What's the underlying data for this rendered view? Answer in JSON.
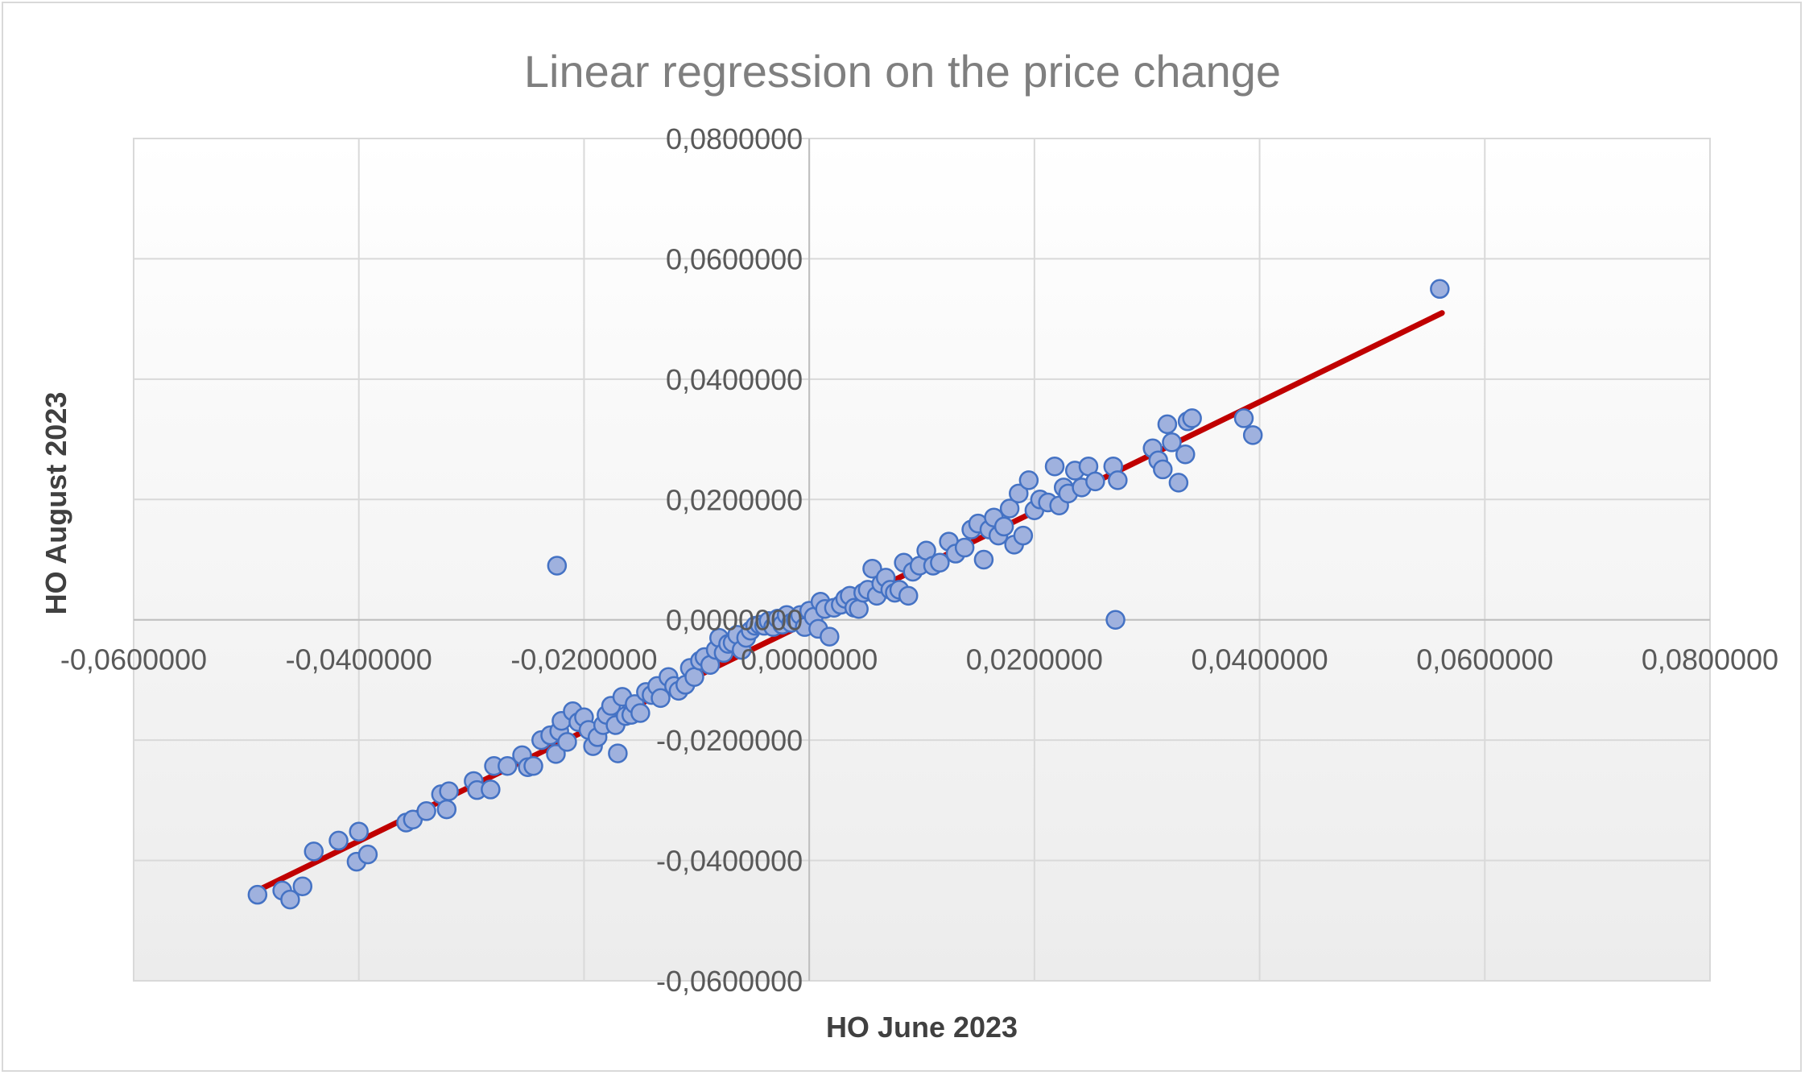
{
  "chart_data": {
    "type": "scatter",
    "title": "Linear regression on the price change",
    "xlabel": "HO June 2023",
    "ylabel": "HO August 2023",
    "xlim": [
      -0.06,
      0.08
    ],
    "ylim": [
      -0.06,
      0.08
    ],
    "x_ticks": [
      {
        "value": -0.06,
        "label": "-0,0600000"
      },
      {
        "value": -0.04,
        "label": "-0,0400000"
      },
      {
        "value": -0.02,
        "label": "-0,0200000"
      },
      {
        "value": 0.0,
        "label": "0,0000000"
      },
      {
        "value": 0.02,
        "label": "0,0200000"
      },
      {
        "value": 0.04,
        "label": "0,0400000"
      },
      {
        "value": 0.06,
        "label": "0,0600000"
      },
      {
        "value": 0.08,
        "label": "0,0800000"
      }
    ],
    "y_ticks": [
      {
        "value": 0.08,
        "label": "0,0800000"
      },
      {
        "value": 0.06,
        "label": "0,0600000"
      },
      {
        "value": 0.04,
        "label": "0,0400000"
      },
      {
        "value": 0.02,
        "label": "0,0200000"
      },
      {
        "value": 0.0,
        "label": "0,0000000"
      },
      {
        "value": -0.02,
        "label": "-0,0200000"
      },
      {
        "value": -0.04,
        "label": "-0,0400000"
      },
      {
        "value": -0.06,
        "label": "-0,0600000"
      }
    ],
    "grid": true,
    "series": [
      {
        "name": "HO August 2023",
        "points": [
          [
            -0.049,
            -0.0457
          ],
          [
            -0.0468,
            -0.045
          ],
          [
            -0.0461,
            -0.0465
          ],
          [
            -0.045,
            -0.0443
          ],
          [
            -0.044,
            -0.0385
          ],
          [
            -0.0418,
            -0.0367
          ],
          [
            -0.0402,
            -0.0402
          ],
          [
            -0.04,
            -0.0352
          ],
          [
            -0.0392,
            -0.039
          ],
          [
            -0.0358,
            -0.0337
          ],
          [
            -0.0352,
            -0.0332
          ],
          [
            -0.034,
            -0.0318
          ],
          [
            -0.0327,
            -0.029
          ],
          [
            -0.0322,
            -0.0315
          ],
          [
            -0.032,
            -0.0285
          ],
          [
            -0.0298,
            -0.0268
          ],
          [
            -0.0295,
            -0.0283
          ],
          [
            -0.0283,
            -0.0282
          ],
          [
            -0.028,
            -0.0243
          ],
          [
            -0.0268,
            -0.0243
          ],
          [
            -0.0255,
            -0.0225
          ],
          [
            -0.025,
            -0.0245
          ],
          [
            -0.0245,
            -0.0243
          ],
          [
            -0.0238,
            -0.02
          ],
          [
            -0.023,
            -0.0192
          ],
          [
            -0.0225,
            -0.0223
          ],
          [
            -0.0222,
            -0.0185
          ],
          [
            -0.022,
            -0.0168
          ],
          [
            -0.0215,
            -0.0203
          ],
          [
            -0.021,
            -0.0152
          ],
          [
            -0.0205,
            -0.017
          ],
          [
            -0.02,
            -0.0162
          ],
          [
            -0.0196,
            -0.0183
          ],
          [
            -0.0192,
            -0.021
          ],
          [
            -0.0188,
            -0.0195
          ],
          [
            -0.0183,
            -0.0175
          ],
          [
            -0.018,
            -0.0158
          ],
          [
            -0.0176,
            -0.0143
          ],
          [
            -0.0172,
            -0.0175
          ],
          [
            -0.017,
            -0.0222
          ],
          [
            -0.0166,
            -0.0128
          ],
          [
            -0.0163,
            -0.016
          ],
          [
            -0.0158,
            -0.0158
          ],
          [
            -0.0155,
            -0.014
          ],
          [
            -0.015,
            -0.0155
          ],
          [
            -0.0145,
            -0.012
          ],
          [
            -0.014,
            -0.0125
          ],
          [
            -0.0135,
            -0.011
          ],
          [
            -0.0132,
            -0.013
          ],
          [
            -0.0125,
            -0.0095
          ],
          [
            -0.012,
            -0.011
          ],
          [
            -0.0116,
            -0.0118
          ],
          [
            -0.011,
            -0.0108
          ],
          [
            -0.0106,
            -0.008
          ],
          [
            -0.0102,
            -0.0095
          ],
          [
            -0.0097,
            -0.0068
          ],
          [
            -0.0093,
            -0.0062
          ],
          [
            -0.0088,
            -0.0075
          ],
          [
            -0.0083,
            -0.005
          ],
          [
            -0.008,
            -0.003
          ],
          [
            -0.0076,
            -0.0055
          ],
          [
            -0.0072,
            -0.004
          ],
          [
            -0.0068,
            -0.0038
          ],
          [
            -0.0064,
            -0.0025
          ],
          [
            -0.006,
            -0.005
          ],
          [
            -0.0056,
            -0.003
          ],
          [
            -0.0052,
            -0.0018
          ],
          [
            -0.0048,
            -0.001
          ],
          [
            -0.0044,
            -0.0008
          ],
          [
            -0.004,
            -0.001
          ],
          [
            -0.0036,
            -0.0002
          ],
          [
            -0.0032,
            -0.0012
          ],
          [
            -0.0028,
            0.0002
          ],
          [
            -0.0024,
            -0.0008
          ],
          [
            -0.002,
            0.0008
          ],
          [
            -0.0016,
            -0.0005
          ],
          [
            -0.0012,
            0.0
          ],
          [
            -0.0008,
            0.0008
          ],
          [
            -0.0004,
            -0.0012
          ],
          [
            0.0,
            0.0015
          ],
          [
            0.0004,
            0.0005
          ],
          [
            0.0008,
            -0.0015
          ],
          [
            0.001,
            0.003
          ],
          [
            0.0014,
            0.0018
          ],
          [
            0.0018,
            -0.0028
          ],
          [
            0.0022,
            0.002
          ],
          [
            0.0028,
            0.0025
          ],
          [
            0.0032,
            0.0035
          ],
          [
            0.0036,
            0.004
          ],
          [
            0.004,
            0.002
          ],
          [
            0.0044,
            0.0018
          ],
          [
            0.0048,
            0.0045
          ],
          [
            0.0052,
            0.005
          ],
          [
            0.0056,
            0.0085
          ],
          [
            0.006,
            0.004
          ],
          [
            0.0064,
            0.006
          ],
          [
            0.0068,
            0.007
          ],
          [
            0.0072,
            0.005
          ],
          [
            0.0076,
            0.0045
          ],
          [
            0.008,
            0.005
          ],
          [
            0.0084,
            0.0095
          ],
          [
            0.0088,
            0.004
          ],
          [
            0.0092,
            0.008
          ],
          [
            0.0098,
            0.009
          ],
          [
            0.0104,
            0.0115
          ],
          [
            0.011,
            0.009
          ],
          [
            0.0116,
            0.0095
          ],
          [
            0.0124,
            0.013
          ],
          [
            0.013,
            0.011
          ],
          [
            0.0138,
            0.012
          ],
          [
            0.0144,
            0.015
          ],
          [
            0.015,
            0.016
          ],
          [
            0.0155,
            0.01
          ],
          [
            0.016,
            0.015
          ],
          [
            0.0164,
            0.017
          ],
          [
            0.0168,
            0.014
          ],
          [
            0.0173,
            0.0155
          ],
          [
            0.0178,
            0.0185
          ],
          [
            0.0182,
            0.0125
          ],
          [
            0.0186,
            0.021
          ],
          [
            0.019,
            0.014
          ],
          [
            0.0195,
            0.0232
          ],
          [
            0.02,
            0.0182
          ],
          [
            0.0205,
            0.02
          ],
          [
            0.0212,
            0.0195
          ],
          [
            0.0218,
            0.0255
          ],
          [
            0.0222,
            0.019
          ],
          [
            0.0226,
            0.022
          ],
          [
            0.023,
            0.021
          ],
          [
            0.0236,
            0.0248
          ],
          [
            0.0242,
            0.022
          ],
          [
            0.0248,
            0.0255
          ],
          [
            0.0254,
            0.023
          ],
          [
            0.027,
            0.0255
          ],
          [
            0.0274,
            0.0232
          ],
          [
            0.0305,
            0.0285
          ],
          [
            0.031,
            0.0265
          ],
          [
            0.0314,
            0.025
          ],
          [
            0.0318,
            0.0325
          ],
          [
            0.0322,
            0.0295
          ],
          [
            0.0328,
            0.0228
          ],
          [
            0.0334,
            0.0275
          ],
          [
            0.0336,
            0.033
          ],
          [
            0.034,
            0.0335
          ],
          [
            0.0386,
            0.0335
          ],
          [
            0.0394,
            0.0307
          ],
          [
            0.056,
            0.055
          ],
          [
            -0.0224,
            0.009
          ],
          [
            0.0272,
            0.0
          ]
        ]
      }
    ],
    "trendline": {
      "name": "Linear",
      "x": [
        -0.049,
        0.0562
      ],
      "y": [
        -0.045,
        0.051
      ],
      "color": "#c00000"
    }
  },
  "colors": {
    "marker_fill": "#9fb1de",
    "marker_stroke": "#4472c4",
    "trendline": "#c00000",
    "grid": "#d9d9d9",
    "axis": "#bfbfbf"
  }
}
